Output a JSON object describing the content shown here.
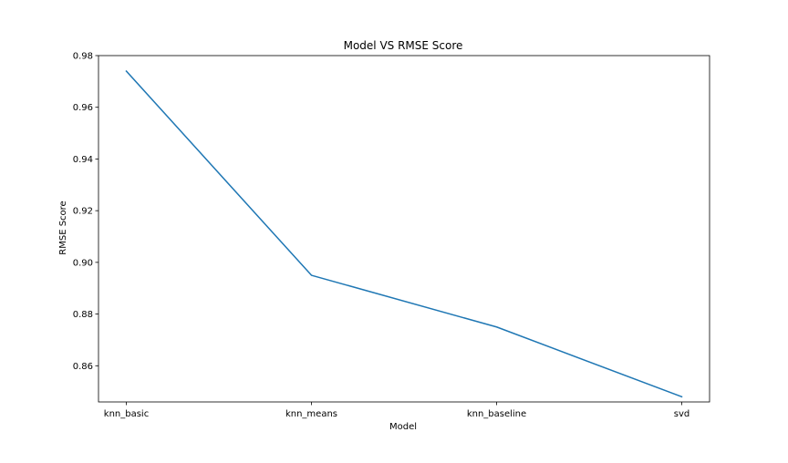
{
  "chart_data": {
    "type": "line",
    "title": "Model VS RMSE Score",
    "xlabel": "Model",
    "ylabel": "RMSE Score",
    "categories": [
      "knn_basic",
      "knn_means",
      "knn_baseline",
      "svd"
    ],
    "values": [
      0.974,
      0.895,
      0.875,
      0.848
    ],
    "ylim": [
      0.846,
      0.98
    ],
    "yticks": [
      0.86,
      0.88,
      0.9,
      0.92,
      0.94,
      0.96,
      0.98
    ],
    "ytick_labels": [
      "0.86",
      "0.88",
      "0.90",
      "0.92",
      "0.94",
      "0.96",
      "0.98"
    ],
    "line_color": "#1f77b4",
    "grid": false,
    "legend": "none"
  }
}
